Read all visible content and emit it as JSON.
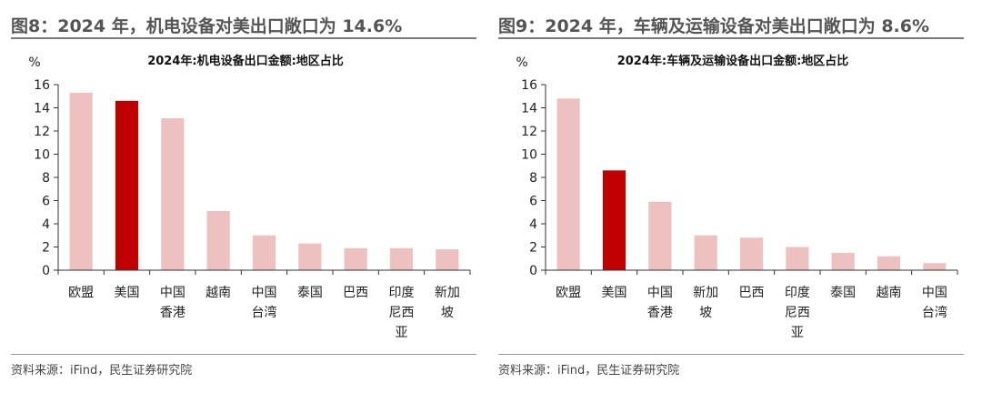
{
  "charts": [
    {
      "fig_title": "图8：2024 年，机电设备对美出口敞口为 14.6%",
      "source": "资料来源：iFind，民生证券研究院",
      "chart_data": {
        "type": "bar",
        "title": "2024年:机电设备出口金额:地区占比",
        "ylabel": "%",
        "ylim": [
          0,
          16
        ],
        "yticks": [
          0,
          2,
          4,
          6,
          8,
          10,
          12,
          14,
          16
        ],
        "categories": [
          "欧盟",
          "美国",
          "中国香港",
          "越南",
          "中国台湾",
          "泰国",
          "巴西",
          "印度尼西亚",
          "新加坡"
        ],
        "category_lines": [
          [
            "欧盟"
          ],
          [
            "美国"
          ],
          [
            "中国",
            "香港"
          ],
          [
            "越南"
          ],
          [
            "中国",
            "台湾"
          ],
          [
            "泰国"
          ],
          [
            "巴西"
          ],
          [
            "印度",
            "尼西",
            "亚"
          ],
          [
            "新加",
            "坡"
          ]
        ],
        "values": [
          15.3,
          14.6,
          13.1,
          5.1,
          3.0,
          2.3,
          1.9,
          1.9,
          1.8
        ],
        "highlight": "美国",
        "colors": {
          "bar": "#ecc1c0",
          "highlight": "#c00000"
        },
        "grid": false
      }
    },
    {
      "fig_title": "图9：2024 年，车辆及运输设备对美出口敞口为 8.6%",
      "source": "资料来源：iFind，民生证券研究院",
      "chart_data": {
        "type": "bar",
        "title": "2024年:车辆及运输设备出口金额:地区占比",
        "ylabel": "%",
        "ylim": [
          0,
          16
        ],
        "yticks": [
          0,
          2,
          4,
          6,
          8,
          10,
          12,
          14,
          16
        ],
        "categories": [
          "欧盟",
          "美国",
          "中国香港",
          "新加坡",
          "巴西",
          "印度尼西亚",
          "泰国",
          "越南",
          "中国台湾"
        ],
        "category_lines": [
          [
            "欧盟"
          ],
          [
            "美国"
          ],
          [
            "中国",
            "香港"
          ],
          [
            "新加",
            "坡"
          ],
          [
            "巴西"
          ],
          [
            "印度",
            "尼西",
            "亚"
          ],
          [
            "泰国"
          ],
          [
            "越南"
          ],
          [
            "中国",
            "台湾"
          ]
        ],
        "values": [
          14.8,
          8.6,
          5.9,
          3.0,
          2.8,
          2.0,
          1.5,
          1.2,
          0.6
        ],
        "highlight": "美国",
        "colors": {
          "bar": "#ecc1c0",
          "highlight": "#c00000"
        },
        "grid": false
      }
    }
  ]
}
